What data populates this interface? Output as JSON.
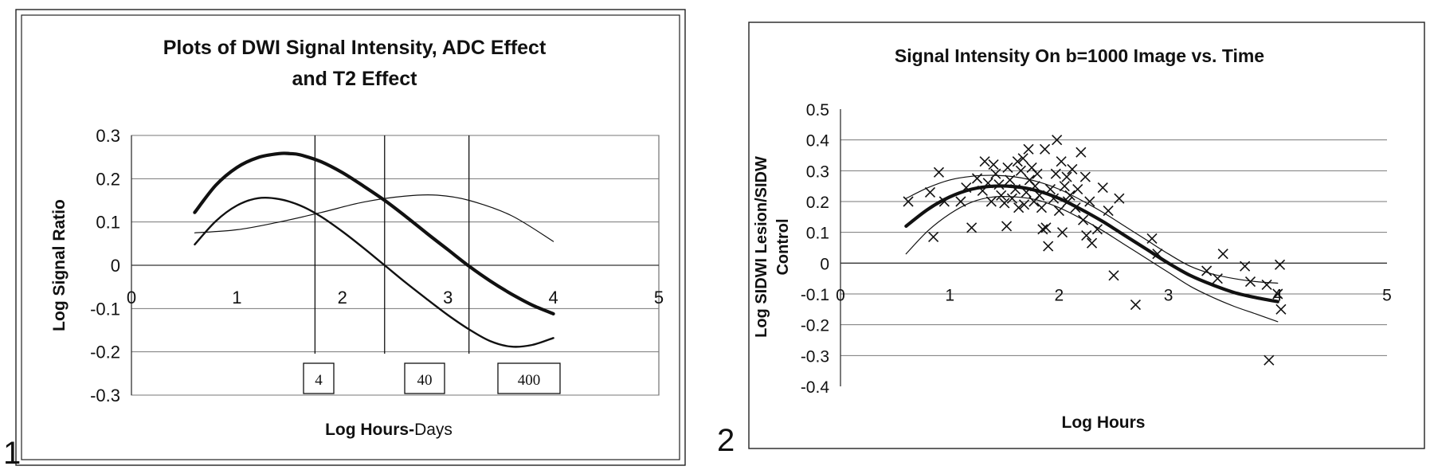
{
  "panels": [
    {
      "number": "1"
    },
    {
      "number": "2"
    }
  ],
  "chart_data": [
    {
      "type": "line",
      "title_lines": [
        "Plots of DWI Signal Intensity, ADC Effect",
        "and T2 Effect"
      ],
      "xlabel_bold": "Log Hours-",
      "xlabel_rest": "Days",
      "ylabel": "Log Signal Ratio",
      "xlim": [
        0,
        5
      ],
      "ylim": [
        -0.3,
        0.3
      ],
      "xticks": [
        "0",
        "1",
        "2",
        "3",
        "4",
        "5"
      ],
      "yticks": [
        "0.3",
        "0.2",
        "0.1",
        "0",
        "-0.1",
        "-0.2",
        "-0.3"
      ],
      "grid": "horizontal",
      "vertical_markers": [
        {
          "x": 1.74,
          "label": "4"
        },
        {
          "x": 2.4,
          "label": "40"
        },
        {
          "x": 3.2,
          "label": "400"
        }
      ],
      "series": [
        {
          "style": "thick",
          "x": [
            0.6,
            0.8,
            1.0,
            1.2,
            1.4,
            1.5,
            1.6,
            1.8,
            2.0,
            2.2,
            2.4,
            2.6,
            2.8,
            3.0,
            3.2,
            3.4,
            3.6,
            3.8,
            4.0
          ],
          "y": [
            0.122,
            0.185,
            0.226,
            0.249,
            0.258,
            0.258,
            0.255,
            0.239,
            0.214,
            0.183,
            0.15,
            0.113,
            0.074,
            0.036,
            -0.002,
            -0.036,
            -0.066,
            -0.092,
            -0.112
          ]
        },
        {
          "style": "medium",
          "x": [
            0.6,
            0.8,
            1.0,
            1.2,
            1.4,
            1.6,
            1.8,
            2.0,
            2.2,
            2.4,
            2.6,
            2.8,
            3.0,
            3.2,
            3.4,
            3.6,
            3.8,
            4.0
          ],
          "y": [
            0.048,
            0.102,
            0.138,
            0.155,
            0.153,
            0.138,
            0.112,
            0.078,
            0.04,
            0.0,
            -0.04,
            -0.078,
            -0.115,
            -0.148,
            -0.175,
            -0.188,
            -0.184,
            -0.168
          ]
        },
        {
          "style": "thin",
          "x": [
            0.6,
            1.0,
            1.4,
            1.8,
            2.2,
            2.6,
            2.9,
            3.2,
            3.6,
            4.0
          ],
          "y": [
            0.075,
            0.082,
            0.1,
            0.122,
            0.146,
            0.16,
            0.162,
            0.15,
            0.115,
            0.055
          ]
        }
      ]
    },
    {
      "type": "scatter",
      "title": "Signal Intensity On b=1000 Image vs. Time",
      "xlabel": "Log Hours",
      "ylabel_lines": [
        "Log SIDWI Lesion/SIDW",
        "Control"
      ],
      "xlim": [
        0,
        5
      ],
      "ylim": [
        -0.4,
        0.5
      ],
      "xticks": [
        "0",
        "1",
        "2",
        "3",
        "4",
        "5"
      ],
      "yticks": [
        "0.5",
        "0.4",
        "0.3",
        "0.2",
        "0.1",
        "0",
        "-0.1",
        "-0.2",
        "-0.3",
        "-0.4"
      ],
      "grid": "horizontal",
      "fit_lines": [
        {
          "style": "thick",
          "x": [
            0.6,
            0.8,
            1.0,
            1.2,
            1.4,
            1.6,
            1.8,
            2.0,
            2.2,
            2.4,
            2.6,
            2.8,
            3.0,
            3.2,
            3.4,
            3.6,
            3.8,
            4.0
          ],
          "y": [
            0.12,
            0.175,
            0.215,
            0.24,
            0.25,
            0.248,
            0.235,
            0.21,
            0.175,
            0.135,
            0.09,
            0.045,
            0.0,
            -0.04,
            -0.07,
            -0.095,
            -0.112,
            -0.125
          ]
        },
        {
          "style": "thin",
          "x": [
            0.6,
            0.8,
            1.0,
            1.2,
            1.4,
            1.6,
            1.8,
            2.0,
            2.2,
            2.4,
            2.6,
            2.8,
            3.0,
            3.2,
            3.4,
            3.6,
            3.8,
            4.0
          ],
          "y": [
            0.21,
            0.245,
            0.27,
            0.282,
            0.285,
            0.28,
            0.265,
            0.24,
            0.205,
            0.165,
            0.12,
            0.075,
            0.03,
            -0.01,
            -0.035,
            -0.05,
            -0.06,
            -0.065
          ]
        },
        {
          "style": "thin",
          "x": [
            0.6,
            0.8,
            1.0,
            1.2,
            1.4,
            1.6,
            1.8,
            2.0,
            2.2,
            2.4,
            2.6,
            2.8,
            3.0,
            3.2,
            3.4,
            3.6,
            3.8,
            4.0
          ],
          "y": [
            0.03,
            0.105,
            0.16,
            0.198,
            0.215,
            0.215,
            0.205,
            0.18,
            0.145,
            0.105,
            0.06,
            0.015,
            -0.03,
            -0.075,
            -0.11,
            -0.14,
            -0.165,
            -0.19
          ]
        }
      ],
      "points": [
        [
          0.62,
          0.2
        ],
        [
          0.82,
          0.23
        ],
        [
          0.85,
          0.085
        ],
        [
          0.9,
          0.295
        ],
        [
          0.95,
          0.2
        ],
        [
          1.1,
          0.2
        ],
        [
          1.15,
          0.245
        ],
        [
          1.2,
          0.115
        ],
        [
          1.25,
          0.275
        ],
        [
          1.3,
          0.235
        ],
        [
          1.32,
          0.33
        ],
        [
          1.35,
          0.26
        ],
        [
          1.38,
          0.2
        ],
        [
          1.4,
          0.32
        ],
        [
          1.42,
          0.29
        ],
        [
          1.45,
          0.255
        ],
        [
          1.47,
          0.22
        ],
        [
          1.5,
          0.195
        ],
        [
          1.52,
          0.12
        ],
        [
          1.53,
          0.31
        ],
        [
          1.55,
          0.27
        ],
        [
          1.57,
          0.21
        ],
        [
          1.6,
          0.24
        ],
        [
          1.62,
          0.33
        ],
        [
          1.63,
          0.18
        ],
        [
          1.65,
          0.3
        ],
        [
          1.67,
          0.34
        ],
        [
          1.68,
          0.19
        ],
        [
          1.7,
          0.23
        ],
        [
          1.72,
          0.37
        ],
        [
          1.73,
          0.27
        ],
        [
          1.75,
          0.31
        ],
        [
          1.77,
          0.2
        ],
        [
          1.78,
          0.25
        ],
        [
          1.8,
          0.29
        ],
        [
          1.82,
          0.22
        ],
        [
          1.84,
          0.18
        ],
        [
          1.85,
          0.11
        ],
        [
          1.87,
          0.37
        ],
        [
          1.88,
          0.115
        ],
        [
          1.9,
          0.055
        ],
        [
          1.92,
          0.24
        ],
        [
          1.95,
          0.21
        ],
        [
          1.97,
          0.29
        ],
        [
          1.98,
          0.4
        ],
        [
          2.0,
          0.17
        ],
        [
          2.02,
          0.33
        ],
        [
          2.03,
          0.1
        ],
        [
          2.05,
          0.25
        ],
        [
          2.07,
          0.28
        ],
        [
          2.08,
          0.2
        ],
        [
          2.1,
          0.22
        ],
        [
          2.12,
          0.305
        ],
        [
          2.15,
          0.18
        ],
        [
          2.17,
          0.24
        ],
        [
          2.2,
          0.36
        ],
        [
          2.22,
          0.14
        ],
        [
          2.24,
          0.28
        ],
        [
          2.25,
          0.09
        ],
        [
          2.28,
          0.2
        ],
        [
          2.3,
          0.065
        ],
        [
          2.35,
          0.11
        ],
        [
          2.4,
          0.245
        ],
        [
          2.45,
          0.17
        ],
        [
          2.5,
          -0.04
        ],
        [
          2.55,
          0.21
        ],
        [
          2.7,
          -0.135
        ],
        [
          2.85,
          0.08
        ],
        [
          2.9,
          0.03
        ],
        [
          3.35,
          -0.025
        ],
        [
          3.45,
          -0.05
        ],
        [
          3.5,
          0.03
        ],
        [
          3.7,
          -0.01
        ],
        [
          3.75,
          -0.06
        ],
        [
          3.9,
          -0.07
        ],
        [
          3.92,
          -0.315
        ],
        [
          4.0,
          -0.1
        ],
        [
          4.02,
          -0.005
        ],
        [
          4.03,
          -0.15
        ]
      ]
    }
  ]
}
